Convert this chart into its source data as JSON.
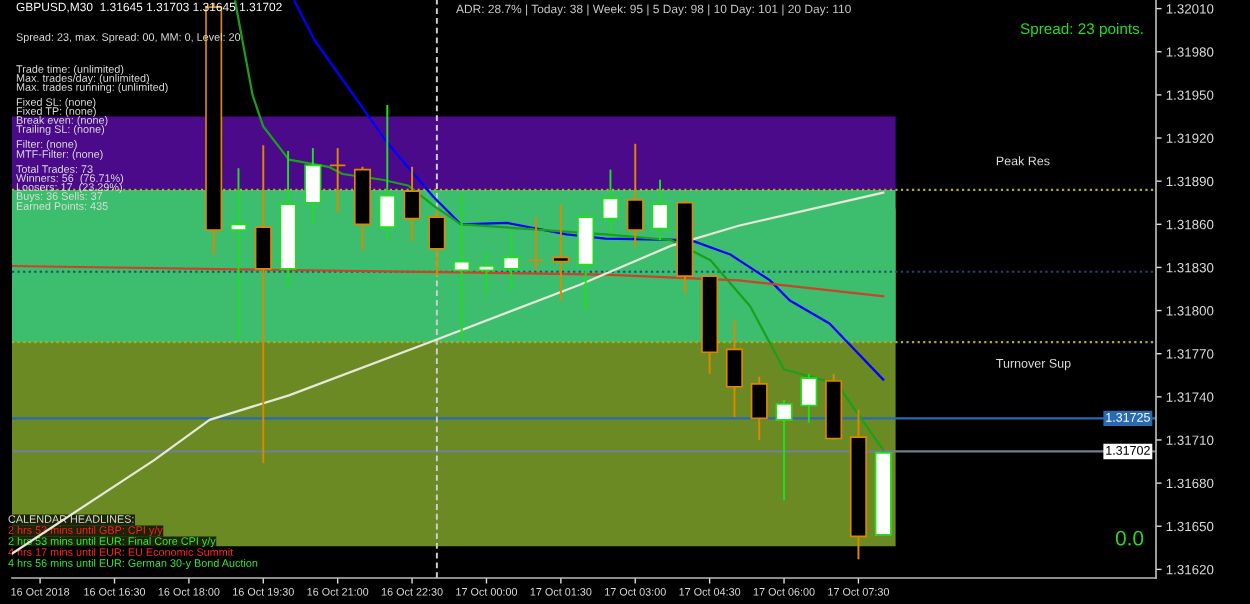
{
  "chart_data": {
    "type": "candlestick",
    "x": [
      "2018-10-16T18:30",
      "2018-10-16T19:00",
      "2018-10-16T19:30",
      "2018-10-16T20:00",
      "2018-10-16T20:30",
      "2018-10-16T21:00",
      "2018-10-16T21:30",
      "2018-10-16T22:00",
      "2018-10-16T22:30",
      "2018-10-16T23:00",
      "2018-10-16T23:30",
      "2018-10-17T00:00",
      "2018-10-17T00:30",
      "2018-10-17T01:00",
      "2018-10-17T01:30",
      "2018-10-17T02:00",
      "2018-10-17T02:30",
      "2018-10-17T03:00",
      "2018-10-17T03:30",
      "2018-10-17T04:00",
      "2018-10-17T04:30",
      "2018-10-17T05:00",
      "2018-10-17T05:30",
      "2018-10-17T06:00",
      "2018-10-17T06:30",
      "2018-10-17T07:00",
      "2018-10-17T07:30",
      "2018-10-17T08:00"
    ],
    "ohlc": [
      [
        1.32011,
        1.32014,
        1.31839,
        1.31856
      ],
      [
        1.31856,
        1.31899,
        1.3178,
        1.3186
      ],
      [
        1.31858,
        1.31915,
        1.31694,
        1.31829
      ],
      [
        1.31829,
        1.31911,
        1.31816,
        1.31874
      ],
      [
        1.31875,
        1.31913,
        1.3186,
        1.31901
      ],
      [
        1.31901,
        1.31913,
        1.31868,
        1.31901
      ],
      [
        1.31898,
        1.319,
        1.31842,
        1.3186
      ],
      [
        1.31858,
        1.31943,
        1.31849,
        1.3188
      ],
      [
        1.31883,
        1.319,
        1.31848,
        1.31864
      ],
      [
        1.31865,
        1.3187,
        1.31824,
        1.31843
      ],
      [
        1.31828,
        1.31881,
        1.3178,
        1.31834
      ],
      [
        1.31828,
        1.3184,
        1.31812,
        1.31831
      ],
      [
        1.31829,
        1.31854,
        1.31814,
        1.31837
      ],
      [
        1.31835,
        1.31865,
        1.31828,
        1.31835
      ],
      [
        1.31837,
        1.31874,
        1.31807,
        1.31834
      ],
      [
        1.31832,
        1.31867,
        1.318,
        1.31865
      ],
      [
        1.31864,
        1.31898,
        1.31854,
        1.31878
      ],
      [
        1.31877,
        1.31916,
        1.31844,
        1.31856
      ],
      [
        1.31857,
        1.31891,
        1.31849,
        1.31874
      ],
      [
        1.31875,
        1.31877,
        1.31812,
        1.31824
      ],
      [
        1.31824,
        1.31824,
        1.31756,
        1.31771
      ],
      [
        1.31773,
        1.31793,
        1.31726,
        1.31747
      ],
      [
        1.31749,
        1.31754,
        1.3171,
        1.31725
      ],
      [
        1.31724,
        1.31738,
        1.31668,
        1.31735
      ],
      [
        1.31734,
        1.31756,
        1.31722,
        1.31753
      ],
      [
        1.31751,
        1.31756,
        1.3171,
        1.31711
      ],
      [
        1.31712,
        1.31731,
        1.31627,
        1.31643
      ],
      [
        1.31644,
        1.31701,
        1.31644,
        1.31701
      ]
    ],
    "colors": [
      "#000000",
      "#ffffff",
      "#000000",
      "#ffffff",
      "#ffffff",
      "#dd8800",
      "#000000",
      "#ffffff",
      "#000000",
      "#000000",
      "#ffffff",
      "#ffffff",
      "#ffffff",
      "#dd8800",
      "#000000",
      "#ffffff",
      "#ffffff",
      "#000000",
      "#ffffff",
      "#000000",
      "#000000",
      "#000000",
      "#000000",
      "#ffffff",
      "#ffffff",
      "#000000",
      "#000000",
      "#ffffff"
    ],
    "series": [
      {
        "type": "line",
        "color": "#0000ff",
        "x": [
          "2018-10-16T20:08",
          "2018-10-16T20:32",
          "2018-10-16T22:01",
          "2018-10-16T22:56",
          "2018-10-16T23:29",
          "2018-10-17T00:25",
          "2018-10-17T01:37",
          "2018-10-17T02:24",
          "2018-10-17T04:07",
          "2018-10-17T04:55",
          "2018-10-17T05:43",
          "2018-10-17T06:07",
          "2018-10-17T06:55",
          "2018-10-17T08:00"
        ],
        "values": [
          1.32015,
          1.31988,
          1.31916,
          1.31879,
          1.3186,
          1.31861,
          1.31853,
          1.3185,
          1.31849,
          1.31839,
          1.31821,
          1.31807,
          1.31791,
          1.31752
        ]
      },
      {
        "type": "line",
        "color": "#1aa01a",
        "x": [
          "2018-10-16T18:56",
          "2018-10-16T19:17",
          "2018-10-16T19:30",
          "2018-10-16T20:01",
          "2018-10-16T20:49",
          "2018-10-16T21:06",
          "2018-10-16T21:54",
          "2018-10-16T22:25",
          "2018-10-16T22:56",
          "2018-10-16T23:29",
          "2018-10-17T02:24",
          "2018-10-17T03:43",
          "2018-10-17T04:31",
          "2018-10-17T05:19",
          "2018-10-17T06:00",
          "2018-10-17T07:04",
          "2018-10-17T08:00"
        ],
        "values": [
          1.32015,
          1.3195,
          1.31928,
          1.31905,
          1.319,
          1.31895,
          1.31891,
          1.31887,
          1.31873,
          1.3186,
          1.31853,
          1.31849,
          1.31835,
          1.31803,
          1.31759,
          1.31749,
          1.31703
        ]
      },
      {
        "type": "line",
        "color": "#c8442a",
        "x": [
          "2018-10-16T14:26",
          "2018-10-17T02:24",
          "2018-10-17T05:05",
          "2018-10-17T08:00"
        ],
        "values": [
          1.31831,
          1.31825,
          1.31821,
          1.3181
        ]
      },
      {
        "type": "line",
        "color": "#e8e8d8",
        "x": [
          "2018-10-16T14:26",
          "2018-10-16T17:18",
          "2018-10-16T18:25",
          "2018-10-16T20:01",
          "2018-10-16T22:56",
          "2018-10-17T01:53",
          "2018-10-17T03:43",
          "2018-10-17T05:05",
          "2018-10-17T08:00"
        ],
        "values": [
          1.31631,
          1.31696,
          1.31724,
          1.31741,
          1.31779,
          1.31818,
          1.31845,
          1.31859,
          1.31882
        ]
      }
    ],
    "bands": [
      {
        "axis": "y",
        "from": 1.31636,
        "to": 1.31871,
        "color": "#6b8a24"
      },
      {
        "axis": "y",
        "from": 1.31778,
        "to": 1.31884,
        "color": "#3dbd6e"
      },
      {
        "axis": "y",
        "from": 1.31884,
        "to": 1.31935,
        "color": "#4a0a8a"
      }
    ],
    "ref_lines": [
      {
        "axis": "y",
        "value": 1.31884,
        "label": "Peak Res",
        "color": "#b0b020",
        "line_style": "dotted"
      },
      {
        "axis": "y",
        "value": 1.31778,
        "label": "Turnover Sup",
        "color": "#b0b020",
        "line_style": "dotted"
      },
      {
        "axis": "y",
        "value": 1.31827,
        "color": "#1a4a7a",
        "line_style": "dotted"
      },
      {
        "axis": "y",
        "value": 1.31725,
        "label": "1.31725",
        "color": "#2a6ab0",
        "line_style": "solid"
      },
      {
        "axis": "y",
        "value": 1.31702,
        "label": "1.31702",
        "color": "#708090",
        "line_style": "solid"
      },
      {
        "axis": "x",
        "value": "2018-10-16T23:00",
        "color": "#d0d0d0",
        "line_style": "dashed"
      }
    ],
    "annotations": [
      "GBPUSD,M30  1.31645 1.31703 1.31645 1.31702",
      "ADR: 28.7% | Today: 38 | Week: 95 | 5 Day: 98 | 10 Day: 101 | 20 Day: 110",
      "Spread: 23 points.",
      "0.0",
      "Spread: 23, max. Spread: 00, MM: 0, Level: 20",
      "Trade time: (unlimited)",
      "Max. trades/day: (unlimited)",
      "Max. trades running: (unlimited)",
      "Fixed SL: (none)",
      "Fixed TP: (none)",
      "Break even: (none)",
      "Trailing SL: (none)",
      "Filter: (none)",
      "MTF-Filter: (none)",
      "Total Trades: 73",
      "Winners: 56  (76.71%)",
      "Loosers: 17  (23.29%)",
      "Buys: 36 Sells: 37",
      "Earned Points: 435",
      "CALENDAR HEADLINES:",
      "2 hrs 53 mins until GBP: CPI y/y",
      "2 hrs 53 mins until EUR: Final Core CPI y/y",
      "4 hrs 17 mins until EUR: EU Economic Summit",
      "4 hrs 56 mins until EUR: German 30-y Bond Auction"
    ],
    "xlim": [
      "2018-10-16T14:26",
      "2018-10-17T13:30"
    ],
    "ylim": [
      1.31614,
      1.32016
    ],
    "xticks": [
      {
        "value": "2018-10-16T15:00",
        "label": "16 Oct 2018"
      },
      {
        "value": "2018-10-16T16:30",
        "label": "16 Oct 16:30"
      },
      {
        "value": "2018-10-16T18:00",
        "label": "16 Oct 18:00"
      },
      {
        "value": "2018-10-16T19:30",
        "label": "16 Oct 19:30"
      },
      {
        "value": "2018-10-16T21:00",
        "label": "16 Oct 21:00"
      },
      {
        "value": "2018-10-16T22:30",
        "label": "16 Oct 22:30"
      },
      {
        "value": "2018-10-17T00:00",
        "label": "17 Oct 00:00"
      },
      {
        "value": "2018-10-17T01:30",
        "label": "17 Oct 01:30"
      },
      {
        "value": "2018-10-17T03:00",
        "label": "17 Oct 03:00"
      },
      {
        "value": "2018-10-17T04:30",
        "label": "17 Oct 04:30"
      },
      {
        "value": "2018-10-17T06:00",
        "label": "17 Oct 06:00"
      },
      {
        "value": "2018-10-17T07:30",
        "label": "17 Oct 07:30"
      }
    ],
    "yticks": [
      {
        "value": 1.3201,
        "label": "1.32010"
      },
      {
        "value": 1.3198,
        "label": "1.31980"
      },
      {
        "value": 1.3195,
        "label": "1.31950"
      },
      {
        "value": 1.3192,
        "label": "1.31920"
      },
      {
        "value": 1.3189,
        "label": "1.31890"
      },
      {
        "value": 1.3186,
        "label": "1.31860"
      },
      {
        "value": 1.3183,
        "label": "1.31830"
      },
      {
        "value": 1.318,
        "label": "1.31800"
      },
      {
        "value": 1.3177,
        "label": "1.31770"
      },
      {
        "value": 1.3174,
        "label": "1.31740"
      },
      {
        "value": 1.3171,
        "label": "1.31710"
      },
      {
        "value": 1.3168,
        "label": "1.31680"
      },
      {
        "value": 1.3165,
        "label": "1.31650"
      },
      {
        "value": 1.3162,
        "label": "1.31620"
      }
    ],
    "grid": false,
    "legend": false
  }
}
